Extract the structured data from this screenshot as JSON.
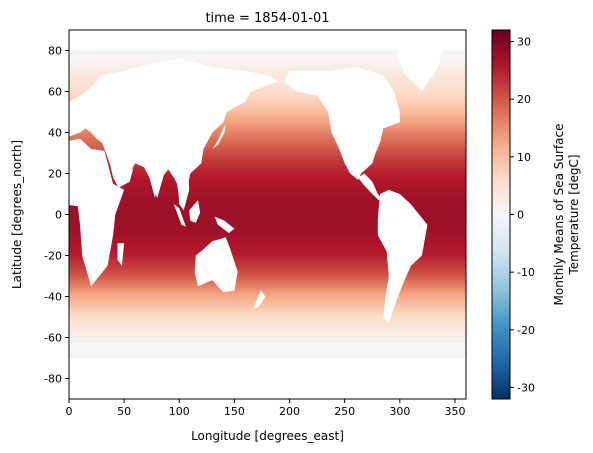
{
  "chart_data": {
    "type": "heatmap",
    "title": "time = 1854-01-01",
    "xlabel": "Longitude [degrees_east]",
    "ylabel": "Latitude [degrees_north]",
    "xlim": [
      0,
      360
    ],
    "ylim": [
      -90,
      90
    ],
    "xticks": [
      0,
      50,
      100,
      150,
      200,
      250,
      300,
      350
    ],
    "yticks": [
      -80,
      -60,
      -40,
      -20,
      0,
      20,
      40,
      60,
      80
    ],
    "colorbar": {
      "label": "Monthly Means of Sea Surface Temperature [degC]",
      "label_lines": [
        "Monthly Means of Sea Surface",
        "Temperature [degC]"
      ],
      "range": [
        -32,
        32
      ],
      "ticks": [
        -30,
        -20,
        -10,
        0,
        10,
        20,
        30
      ],
      "colormap": "RdBu_r",
      "colormap_stops": [
        "#053061",
        "#2166ac",
        "#4393c3",
        "#92c5de",
        "#d1e5f0",
        "#f7f7f7",
        "#fddbc7",
        "#f4a582",
        "#d6604d",
        "#b2182b",
        "#67001f"
      ]
    },
    "grid": false,
    "missing_value_color": "#ffffff",
    "sst_by_latitude": {
      "lat": [
        88,
        80,
        70,
        60,
        50,
        40,
        30,
        20,
        10,
        0,
        -10,
        -20,
        -30,
        -40,
        -50,
        -60,
        -70,
        -80,
        -88
      ],
      "values": [
        null,
        -1.5,
        3,
        6,
        10,
        16,
        21,
        25,
        27,
        27.5,
        27,
        25,
        20,
        12,
        6,
        1.5,
        -1.5,
        null,
        null
      ]
    },
    "land_regions": [
      {
        "name": "North America",
        "polygon": [
          [
            235,
            70
          ],
          [
            260,
            72
          ],
          [
            285,
            68
          ],
          [
            295,
            60
          ],
          [
            300,
            50
          ],
          [
            300,
            45
          ],
          [
            285,
            42
          ],
          [
            282,
            35
          ],
          [
            278,
            30
          ],
          [
            275,
            25
          ],
          [
            265,
            20
          ],
          [
            262,
            17
          ],
          [
            255,
            20
          ],
          [
            250,
            25
          ],
          [
            245,
            32
          ],
          [
            238,
            40
          ],
          [
            235,
            50
          ],
          [
            225,
            58
          ],
          [
            205,
            60
          ],
          [
            195,
            65
          ],
          [
            200,
            70
          ],
          [
            215,
            70
          ]
        ]
      },
      {
        "name": "Greenland",
        "polygon": [
          [
            300,
            82
          ],
          [
            340,
            83
          ],
          [
            335,
            72
          ],
          [
            320,
            60
          ],
          [
            305,
            68
          ],
          [
            298,
            77
          ]
        ]
      },
      {
        "name": "Central America",
        "polygon": [
          [
            262,
            18
          ],
          [
            268,
            20
          ],
          [
            275,
            16
          ],
          [
            280,
            10
          ],
          [
            283,
            8
          ],
          [
            281,
            7
          ],
          [
            275,
            10
          ],
          [
            268,
            14
          ]
        ]
      },
      {
        "name": "South America",
        "polygon": [
          [
            282,
            10
          ],
          [
            290,
            12
          ],
          [
            300,
            10
          ],
          [
            310,
            5
          ],
          [
            325,
            -5
          ],
          [
            320,
            -20
          ],
          [
            310,
            -25
          ],
          [
            302,
            -35
          ],
          [
            295,
            -45
          ],
          [
            290,
            -53
          ],
          [
            285,
            -50
          ],
          [
            287,
            -40
          ],
          [
            290,
            -30
          ],
          [
            288,
            -18
          ],
          [
            280,
            -10
          ],
          [
            280,
            -2
          ]
        ]
      },
      {
        "name": "Eurasia",
        "polygon": [
          [
            -10,
            37
          ],
          [
            -10,
            45
          ],
          [
            -5,
            48
          ],
          [
            0,
            55
          ],
          [
            10,
            58
          ],
          [
            20,
            62
          ],
          [
            30,
            68
          ],
          [
            50,
            70
          ],
          [
            70,
            73
          ],
          [
            100,
            76
          ],
          [
            130,
            72
          ],
          [
            160,
            70
          ],
          [
            180,
            68
          ],
          [
            190,
            65
          ],
          [
            165,
            60
          ],
          [
            160,
            55
          ],
          [
            143,
            50
          ],
          [
            140,
            45
          ],
          [
            130,
            40
          ],
          [
            122,
            32
          ],
          [
            120,
            25
          ],
          [
            110,
            20
          ],
          [
            108,
            15
          ],
          [
            105,
            10
          ],
          [
            100,
            8
          ],
          [
            98,
            15
          ],
          [
            95,
            18
          ],
          [
            90,
            22
          ],
          [
            80,
            15
          ],
          [
            78,
            8
          ],
          [
            73,
            18
          ],
          [
            68,
            23
          ],
          [
            60,
            25
          ],
          [
            57,
            22
          ],
          [
            50,
            15
          ],
          [
            45,
            13
          ],
          [
            40,
            20
          ],
          [
            35,
            28
          ],
          [
            30,
            35
          ],
          [
            25,
            37
          ],
          [
            20,
            40
          ],
          [
            15,
            42
          ],
          [
            10,
            40
          ],
          [
            0,
            38
          ]
        ]
      },
      {
        "name": "Africa",
        "polygon": [
          [
            -15,
            30
          ],
          [
            -10,
            35
          ],
          [
            10,
            37
          ],
          [
            20,
            32
          ],
          [
            32,
            31
          ],
          [
            40,
            15
          ],
          [
            50,
            12
          ],
          [
            42,
            0
          ],
          [
            40,
            -10
          ],
          [
            35,
            -25
          ],
          [
            20,
            -35
          ],
          [
            12,
            -20
          ],
          [
            10,
            -5
          ],
          [
            8,
            4
          ],
          [
            -5,
            5
          ],
          [
            -15,
            15
          ],
          [
            -17,
            22
          ]
        ]
      },
      {
        "name": "Arabia",
        "polygon": [
          [
            35,
            30
          ],
          [
            47,
            29
          ],
          [
            58,
            22
          ],
          [
            55,
            16
          ],
          [
            45,
            13
          ],
          [
            40,
            18
          ]
        ]
      },
      {
        "name": "Madagascar",
        "polygon": [
          [
            44,
            -14
          ],
          [
            50,
            -14
          ],
          [
            48,
            -25
          ],
          [
            44,
            -22
          ]
        ]
      },
      {
        "name": "India",
        "polygon": [
          [
            68,
            24
          ],
          [
            88,
            23
          ],
          [
            80,
            8
          ],
          [
            73,
            18
          ]
        ]
      },
      {
        "name": "Southeast Asia",
        "polygon": [
          [
            98,
            20
          ],
          [
            108,
            22
          ],
          [
            109,
            12
          ],
          [
            104,
            2
          ],
          [
            100,
            5
          ],
          [
            99,
            12
          ]
        ]
      },
      {
        "name": "Sumatra",
        "polygon": [
          [
            95,
            5
          ],
          [
            100,
            3
          ],
          [
            106,
            -6
          ],
          [
            102,
            -5
          ]
        ]
      },
      {
        "name": "Borneo",
        "polygon": [
          [
            109,
            2
          ],
          [
            117,
            7
          ],
          [
            119,
            1
          ],
          [
            115,
            -4
          ],
          [
            110,
            -3
          ]
        ]
      },
      {
        "name": "New Guinea",
        "polygon": [
          [
            132,
            -1
          ],
          [
            141,
            -3
          ],
          [
            150,
            -7
          ],
          [
            145,
            -9
          ],
          [
            135,
            -5
          ]
        ]
      },
      {
        "name": "Australia",
        "polygon": [
          [
            115,
            -20
          ],
          [
            122,
            -17
          ],
          [
            130,
            -13
          ],
          [
            137,
            -12
          ],
          [
            142,
            -11
          ],
          [
            145,
            -15
          ],
          [
            150,
            -23
          ],
          [
            153,
            -28
          ],
          [
            150,
            -37
          ],
          [
            140,
            -38
          ],
          [
            130,
            -32
          ],
          [
            117,
            -35
          ],
          [
            114,
            -28
          ]
        ]
      },
      {
        "name": "New Zealand",
        "polygon": [
          [
            167,
            -46
          ],
          [
            174,
            -37
          ],
          [
            178,
            -40
          ],
          [
            172,
            -45
          ]
        ]
      },
      {
        "name": "Japan",
        "polygon": [
          [
            130,
            32
          ],
          [
            135,
            34
          ],
          [
            141,
            40
          ],
          [
            142,
            44
          ],
          [
            140,
            42
          ],
          [
            134,
            35
          ]
        ]
      },
      {
        "name": "British Isles",
        "polygon": [
          [
            -6,
            50
          ],
          [
            2,
            51
          ],
          [
            0,
            57
          ],
          [
            -5,
            58
          ],
          [
            -8,
            54
          ]
        ]
      },
      {
        "name": "Antarctica",
        "polygon": [
          [
            0,
            -70
          ],
          [
            360,
            -70
          ],
          [
            360,
            -90
          ],
          [
            0,
            -90
          ]
        ]
      }
    ]
  }
}
